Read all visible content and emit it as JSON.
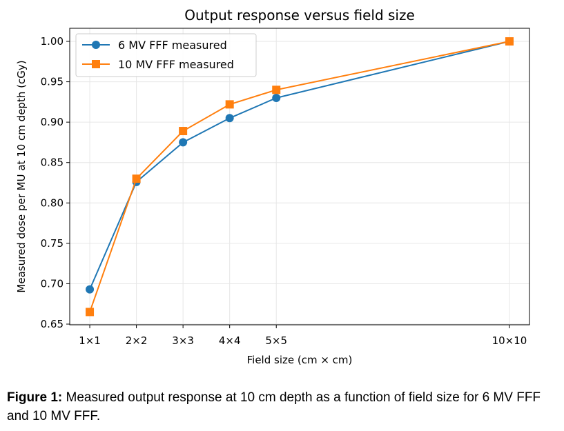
{
  "chart_data": {
    "type": "line",
    "title": "Output response versus field size",
    "xlabel": "Field size (cm × cm)",
    "ylabel": "Measured dose per MU at 10 cm depth (cGy)",
    "x": [
      1,
      2,
      3,
      4,
      5,
      10
    ],
    "categories": [
      "1×1",
      "2×2",
      "3×3",
      "4×4",
      "5×5",
      "10×10"
    ],
    "ylim": [
      0.65,
      1.0
    ],
    "yticks": [
      "0.65",
      "0.70",
      "0.75",
      "0.80",
      "0.85",
      "0.90",
      "0.95",
      "1.00"
    ],
    "grid": true,
    "legend_position": "top-left",
    "series": [
      {
        "name": "6 MV FFF measured",
        "marker": "circle",
        "color": "#1f77b4",
        "values": [
          0.693,
          0.826,
          0.875,
          0.905,
          0.93,
          1.0
        ]
      },
      {
        "name": "10 MV FFF measured",
        "marker": "square",
        "color": "#ff7f0e",
        "values": [
          0.665,
          0.83,
          0.889,
          0.922,
          0.94,
          1.0
        ]
      }
    ]
  },
  "caption": {
    "label": "Figure 1:",
    "text": " Measured output response at 10 cm depth as a function of field size for 6 MV FFF and 10 MV FFF."
  }
}
